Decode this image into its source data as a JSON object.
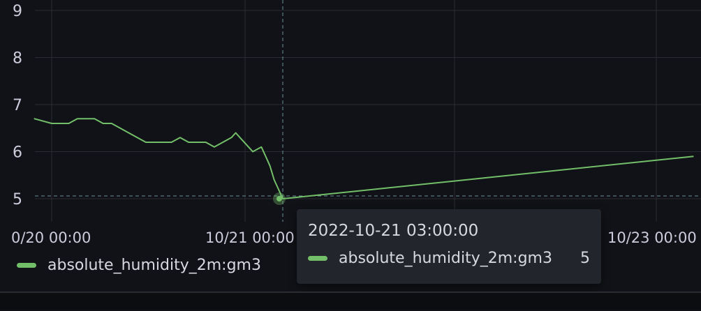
{
  "chart_data": {
    "type": "line",
    "ylim": [
      4.8,
      9.2
    ],
    "y_ticks": [
      "9",
      "8",
      "7",
      "6",
      "5"
    ],
    "x_ticks": [
      "0/20 00:00",
      "10/21 00:00",
      "10/23 00:00"
    ],
    "grid": true,
    "legend_position": "bottom-left",
    "series": [
      {
        "name": "absolute_humidity_2m:gm3",
        "color": "#73bf69",
        "points": [
          [
            "2022-10-19 20:00",
            6.7
          ],
          [
            "2022-10-19 22:00",
            6.7
          ],
          [
            "2022-10-20 00:00",
            6.6
          ],
          [
            "2022-10-20 02:00",
            6.6
          ],
          [
            "2022-10-20 03:00",
            6.7
          ],
          [
            "2022-10-20 05:00",
            6.7
          ],
          [
            "2022-10-20 06:00",
            6.6
          ],
          [
            "2022-10-20 07:00",
            6.6
          ],
          [
            "2022-10-20 08:00",
            6.5
          ],
          [
            "2022-10-20 09:00",
            6.4
          ],
          [
            "2022-10-20 10:00",
            6.3
          ],
          [
            "2022-10-20 11:00",
            6.2
          ],
          [
            "2022-10-20 13:00",
            6.2
          ],
          [
            "2022-10-20 14:00",
            6.2
          ],
          [
            "2022-10-20 15:00",
            6.3
          ],
          [
            "2022-10-20 16:00",
            6.2
          ],
          [
            "2022-10-20 18:00",
            6.2
          ],
          [
            "2022-10-20 19:00",
            6.1
          ],
          [
            "2022-10-20 20:00",
            6.2
          ],
          [
            "2022-10-20 21:00",
            6.3
          ],
          [
            "2022-10-20 21:30",
            6.4
          ],
          [
            "2022-10-20 22:00",
            6.3
          ],
          [
            "2022-10-20 23:00",
            6.1
          ],
          [
            "2022-10-20 23:30",
            6.0
          ],
          [
            "2022-10-21 00:30",
            6.1
          ],
          [
            "2022-10-21 01:00",
            5.9
          ],
          [
            "2022-10-21 01:30",
            5.7
          ],
          [
            "2022-10-21 02:00",
            5.4
          ],
          [
            "2022-10-21 02:30",
            5.2
          ],
          [
            "2022-10-21 03:00",
            5.0
          ],
          [
            "2022-10-23 03:00",
            5.9
          ]
        ]
      }
    ]
  },
  "tooltip": {
    "time": "2022-10-21 03:00:00",
    "series_name": "absolute_humidity_2m:gm3",
    "value": "5"
  },
  "legend": {
    "label": "absolute_humidity_2m:gm3"
  },
  "hover_index": 29
}
